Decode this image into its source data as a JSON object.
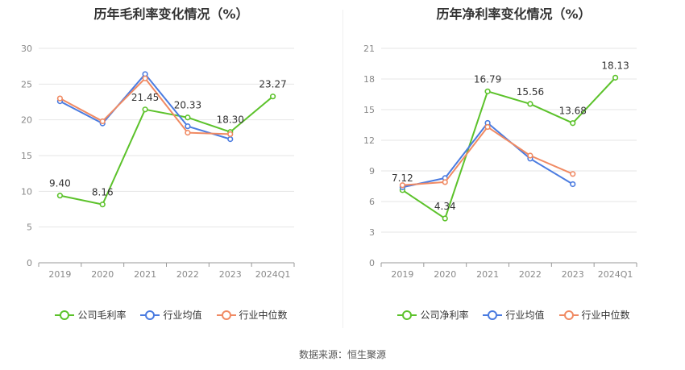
{
  "source": "数据来源：恒生聚源",
  "chart_data": [
    {
      "type": "line",
      "title": "历年毛利率变化情况（%）",
      "categories": [
        "2019",
        "2020",
        "2021",
        "2022",
        "2023",
        "2024Q1"
      ],
      "ylim": [
        0,
        30
      ],
      "yticks": [
        0,
        5,
        10,
        15,
        20,
        25,
        30
      ],
      "grid": true,
      "legend_position": "bottom",
      "series": [
        {
          "name": "公司毛利率",
          "color": "#5cc22b",
          "values": [
            9.4,
            8.16,
            21.45,
            20.33,
            18.3,
            23.27
          ],
          "labels": [
            "9.40",
            "8.16",
            "21.45",
            "20.33",
            "18.30",
            "23.27"
          ]
        },
        {
          "name": "行业均值",
          "color": "#4a7be0",
          "values": [
            22.6,
            19.5,
            26.4,
            19.1,
            17.3,
            null
          ]
        },
        {
          "name": "行业中位数",
          "color": "#f08a63",
          "values": [
            23.0,
            19.8,
            25.8,
            18.2,
            18.0,
            null
          ]
        }
      ]
    },
    {
      "type": "line",
      "title": "历年净利率变化情况（%）",
      "categories": [
        "2019",
        "2020",
        "2021",
        "2022",
        "2023",
        "2024Q1"
      ],
      "ylim": [
        0,
        21
      ],
      "yticks": [
        0,
        3,
        6,
        9,
        12,
        15,
        18,
        21
      ],
      "grid": true,
      "legend_position": "bottom",
      "series": [
        {
          "name": "公司净利率",
          "color": "#5cc22b",
          "values": [
            7.12,
            4.34,
            16.79,
            15.56,
            13.68,
            18.13
          ],
          "labels": [
            "7.12",
            "4.34",
            "16.79",
            "15.56",
            "13.68",
            "18.13"
          ]
        },
        {
          "name": "行业均值",
          "color": "#4a7be0",
          "values": [
            7.4,
            8.3,
            13.7,
            10.2,
            7.7,
            null
          ]
        },
        {
          "name": "行业中位数",
          "color": "#f08a63",
          "values": [
            7.6,
            7.9,
            13.3,
            10.5,
            8.7,
            null
          ]
        }
      ]
    }
  ]
}
